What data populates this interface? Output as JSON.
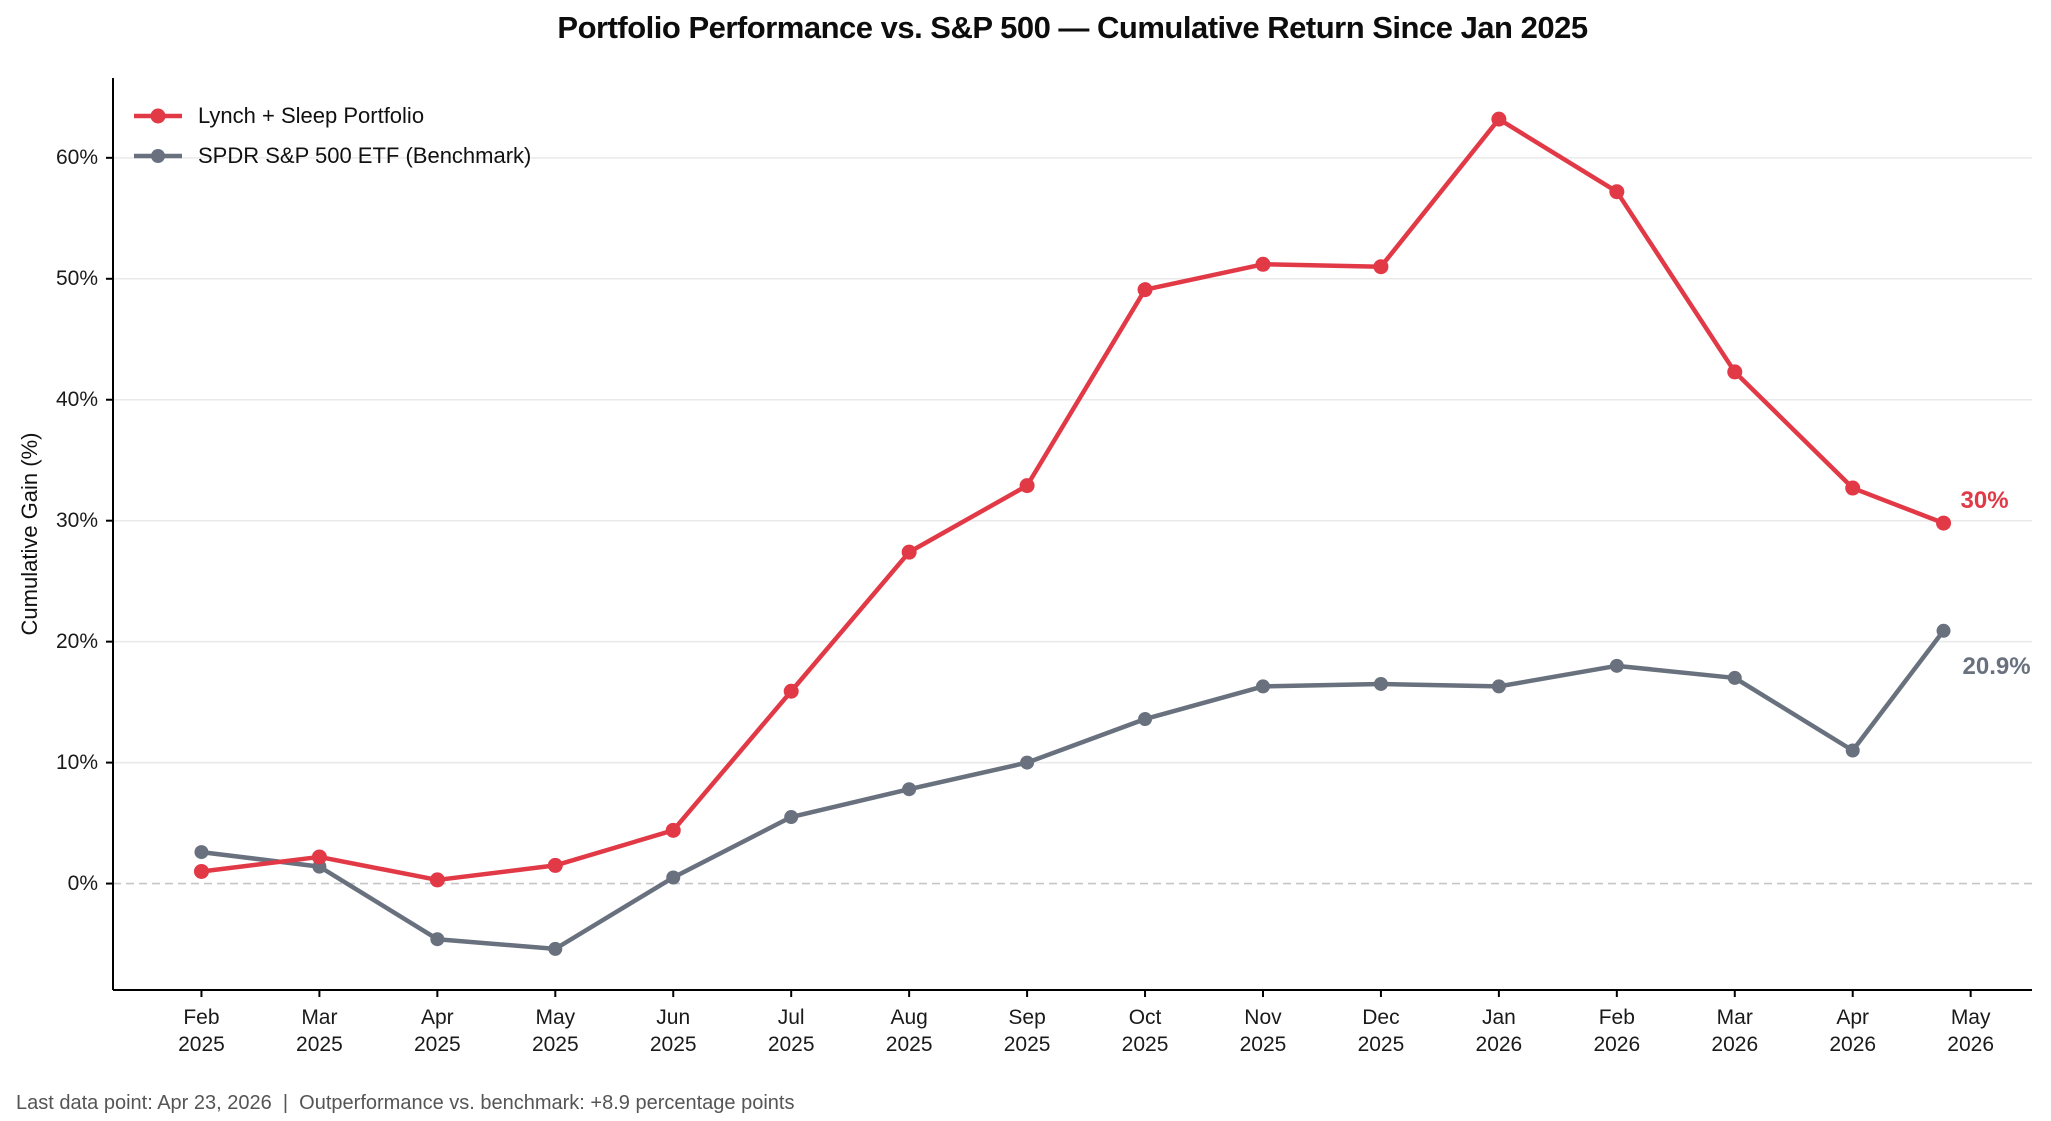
{
  "title": "Portfolio Performance vs. S&P 500 — Cumulative Return Since Jan 2025",
  "footer": "Last data point: Apr 23, 2026  |  Outperformance vs. benchmark: +8.9 percentage points",
  "y_axis": {
    "label": "Cumulative Gain (%)",
    "tick_labels": [
      "0%",
      "10%",
      "20%",
      "30%",
      "40%",
      "50%",
      "60%"
    ]
  },
  "legend": {
    "items": [
      {
        "label": "Lynch + Sleep Portfolio",
        "color": "#e23947"
      },
      {
        "label": "SPDR S&P 500 ETF (Benchmark)",
        "color": "#69717e"
      }
    ]
  },
  "colors": {
    "portfolio": "#e23947",
    "benchmark": "#69717e",
    "gridline": "#e9e9e9",
    "zero_line": "#c6c6c6",
    "axis": "#000000",
    "footer_text": "#555555"
  },
  "chart_data": {
    "type": "line",
    "categories": [
      "Feb 2025",
      "Mar 2025",
      "Apr 2025",
      "May 2025",
      "Jun 2025",
      "Jul 2025",
      "Aug 2025",
      "Sep 2025",
      "Oct 2025",
      "Nov 2025",
      "Dec 2025",
      "Jan 2026",
      "Feb 2026",
      "Mar 2026",
      "Apr 2026",
      "May 2026"
    ],
    "x_numeric": [
      1,
      2,
      3,
      4,
      5,
      6,
      7,
      8,
      9,
      10,
      11,
      12,
      13,
      14,
      15,
      15.77
    ],
    "series": [
      {
        "name": "Lynch + Sleep Portfolio",
        "color": "#e23947",
        "values": [
          1.0,
          2.2,
          0.3,
          1.5,
          4.4,
          15.9,
          27.4,
          32.9,
          49.1,
          51.2,
          51.0,
          63.2,
          57.2,
          42.3,
          32.7,
          29.8
        ],
        "end_label": "30%"
      },
      {
        "name": "SPDR S&P 500 ETF (Benchmark)",
        "color": "#69717e",
        "values": [
          2.6,
          1.4,
          -4.6,
          -5.4,
          0.5,
          5.5,
          7.8,
          10.0,
          13.6,
          16.3,
          16.5,
          16.3,
          18.0,
          17.0,
          11.0,
          20.9
        ],
        "end_label": "20.9%"
      }
    ],
    "yticks": [
      0,
      10,
      20,
      30,
      40,
      50,
      60
    ],
    "ylim": [
      -8.8,
      66.6
    ],
    "xlim": [
      0.25,
      16.52
    ],
    "grid": "horizontal",
    "zero_line": "dashed",
    "legend_position": "top-left",
    "xlabel": "",
    "ylabel": "Cumulative Gain (%)"
  }
}
